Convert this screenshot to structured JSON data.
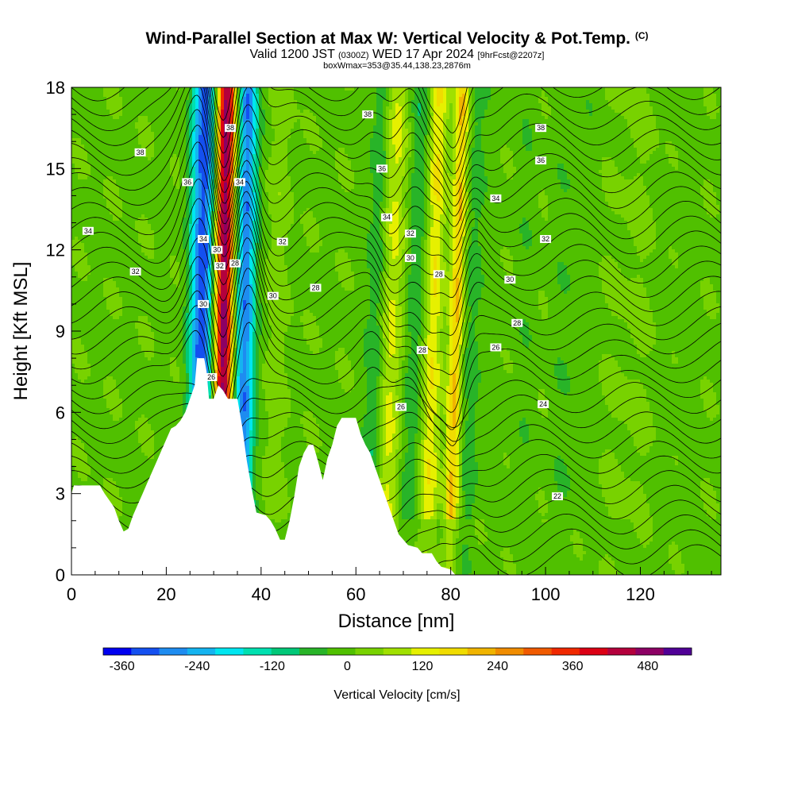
{
  "header": {
    "title": "Wind-Parallel Section at Max W: Vertical Velocity & Pot.Temp.",
    "copyright": "(C)",
    "valid_prefix": "Valid 1200 JST",
    "valid_utc": "(0300Z)",
    "valid_date": "WED 17 Apr 2024",
    "forecast": "[9hrFcst@2207z]",
    "box_info": "boxWmax=353@35.44,138.23,2876m"
  },
  "chart_data": {
    "type": "heatmap",
    "xlabel": "Distance [nm]",
    "ylabel": "Height [Kft MSL]",
    "xlim": [
      0,
      137
    ],
    "ylim": [
      0,
      18
    ],
    "x_ticks": [
      0,
      20,
      40,
      60,
      80,
      100,
      120
    ],
    "y_ticks": [
      0,
      3,
      6,
      9,
      12,
      15,
      18
    ],
    "colorbar": {
      "label": "Vertical Velocity [cm/s]",
      "ticks": [
        -360,
        -240,
        -120,
        0,
        120,
        240,
        360,
        480
      ],
      "range": [
        -390,
        550
      ],
      "colors": [
        "#0000f0",
        "#1450f0",
        "#1e8cf0",
        "#14b4f0",
        "#00e6f0",
        "#00e0b0",
        "#00c878",
        "#28b428",
        "#50c000",
        "#78d200",
        "#a0e000",
        "#e6f000",
        "#f0dc00",
        "#f0b400",
        "#f08c00",
        "#f05a00",
        "#f02800",
        "#dc0014",
        "#b4003c",
        "#8c0064",
        "#500096"
      ]
    },
    "terrain_kft": [
      [
        0,
        3.0
      ],
      [
        0.5,
        3.3
      ],
      [
        6,
        3.3
      ],
      [
        7,
        3.0
      ],
      [
        9,
        2.5
      ],
      [
        10,
        2.0
      ],
      [
        11,
        1.6
      ],
      [
        12,
        1.7
      ],
      [
        13,
        2.2
      ],
      [
        14,
        2.6
      ],
      [
        15,
        3.0
      ],
      [
        16,
        3.4
      ],
      [
        17,
        3.8
      ],
      [
        18,
        4.2
      ],
      [
        19,
        4.6
      ],
      [
        20,
        5.0
      ],
      [
        21,
        5.4
      ],
      [
        22,
        5.5
      ],
      [
        23,
        5.7
      ],
      [
        24,
        6.0
      ],
      [
        25,
        6.5
      ],
      [
        26,
        7.0
      ],
      [
        26.5,
        8.0
      ],
      [
        28,
        8.0
      ],
      [
        28.5,
        7.5
      ],
      [
        29,
        6.5
      ],
      [
        30,
        6.5
      ],
      [
        31,
        7.0
      ],
      [
        32,
        6.8
      ],
      [
        33,
        6.5
      ],
      [
        35,
        6.5
      ],
      [
        36,
        5.5
      ],
      [
        37,
        4.2
      ],
      [
        38,
        3.2
      ],
      [
        39,
        2.3
      ],
      [
        41,
        2.2
      ],
      [
        42,
        2.0
      ],
      [
        43,
        1.7
      ],
      [
        44,
        1.3
      ],
      [
        45,
        1.3
      ],
      [
        46,
        2.0
      ],
      [
        47,
        2.9
      ],
      [
        48,
        4.0
      ],
      [
        49,
        4.5
      ],
      [
        50,
        4.8
      ],
      [
        51,
        4.8
      ],
      [
        52,
        4.2
      ],
      [
        53,
        3.5
      ],
      [
        54,
        4.3
      ],
      [
        55,
        4.8
      ],
      [
        56,
        5.5
      ],
      [
        57,
        5.8
      ],
      [
        60,
        5.8
      ],
      [
        61,
        5.2
      ],
      [
        62,
        4.8
      ],
      [
        63,
        4.5
      ],
      [
        64,
        4.0
      ],
      [
        65,
        3.5
      ],
      [
        66,
        3.0
      ],
      [
        67,
        2.5
      ],
      [
        68,
        2.0
      ],
      [
        69,
        1.5
      ],
      [
        70,
        1.3
      ],
      [
        71,
        1.1
      ],
      [
        73,
        1.0
      ],
      [
        74,
        0.8
      ],
      [
        76,
        0.8
      ],
      [
        77,
        0.5
      ],
      [
        78,
        0.3
      ],
      [
        80,
        0.2
      ],
      [
        81,
        0
      ],
      [
        137,
        0
      ]
    ],
    "velocity_bands": [
      {
        "center": 27.5,
        "halfwidth": 2.6,
        "peak": -330
      },
      {
        "center": 32,
        "halfwidth": 2.0,
        "peak": 500
      },
      {
        "center": 36.5,
        "halfwidth": 2.0,
        "peak": -300
      },
      {
        "center": 43,
        "halfwidth": 2.5,
        "peak": 35
      },
      {
        "center": 64,
        "halfwidth": 1.8,
        "peak": -80
      },
      {
        "center": 67.5,
        "halfwidth": 2.5,
        "peak": 120
      },
      {
        "center": 72,
        "halfwidth": 2.5,
        "peak": -70
      },
      {
        "center": 76,
        "halfwidth": 2.0,
        "peak": 150
      },
      {
        "center": 81,
        "halfwidth": 1.5,
        "peak": 200
      },
      {
        "center": 84.5,
        "halfwidth": 1.8,
        "peak": -60
      },
      {
        "center": 95,
        "halfwidth": 3.0,
        "peak": -15
      },
      {
        "center": 105,
        "halfwidth": 4.0,
        "peak": -20
      },
      {
        "center": 118,
        "halfwidth": 5.0,
        "peak": 20
      },
      {
        "center": 128,
        "halfwidth": 4.0,
        "peak": -10
      }
    ],
    "potential_temperature_labels": [
      {
        "text": "38",
        "x": 14.5,
        "y": 15.6
      },
      {
        "text": "38",
        "x": 33.5,
        "y": 16.5
      },
      {
        "text": "38",
        "x": 62.5,
        "y": 17.0
      },
      {
        "text": "38",
        "x": 99.0,
        "y": 16.5
      },
      {
        "text": "36",
        "x": 24.5,
        "y": 14.5
      },
      {
        "text": "34",
        "x": 35.5,
        "y": 14.5
      },
      {
        "text": "36",
        "x": 65.5,
        "y": 15.0
      },
      {
        "text": "36",
        "x": 99.0,
        "y": 15.3
      },
      {
        "text": "34",
        "x": 3.5,
        "y": 12.7
      },
      {
        "text": "34",
        "x": 27.8,
        "y": 12.4
      },
      {
        "text": "30",
        "x": 30.7,
        "y": 12.0
      },
      {
        "text": "32",
        "x": 44.5,
        "y": 12.3
      },
      {
        "text": "34",
        "x": 66.5,
        "y": 13.2
      },
      {
        "text": "34",
        "x": 89.5,
        "y": 13.9
      },
      {
        "text": "32",
        "x": 71.5,
        "y": 12.6
      },
      {
        "text": "32",
        "x": 100.0,
        "y": 12.4
      },
      {
        "text": "32",
        "x": 13.5,
        "y": 11.2
      },
      {
        "text": "32",
        "x": 31.3,
        "y": 11.4
      },
      {
        "text": "28",
        "x": 34.5,
        "y": 11.5
      },
      {
        "text": "30",
        "x": 71.5,
        "y": 11.7
      },
      {
        "text": "28",
        "x": 77.5,
        "y": 11.1
      },
      {
        "text": "30",
        "x": 92.5,
        "y": 10.9
      },
      {
        "text": "30",
        "x": 27.8,
        "y": 10.0
      },
      {
        "text": "30",
        "x": 42.5,
        "y": 10.3
      },
      {
        "text": "28",
        "x": 51.5,
        "y": 10.6
      },
      {
        "text": "28",
        "x": 94.0,
        "y": 9.3
      },
      {
        "text": "28",
        "x": 74.0,
        "y": 8.3
      },
      {
        "text": "26",
        "x": 89.5,
        "y": 8.4
      },
      {
        "text": "26",
        "x": 29.5,
        "y": 7.3
      },
      {
        "text": "26",
        "x": 69.5,
        "y": 6.2
      },
      {
        "text": "24",
        "x": 99.5,
        "y": 6.3
      },
      {
        "text": "22",
        "x": 102.5,
        "y": 2.9
      }
    ]
  }
}
